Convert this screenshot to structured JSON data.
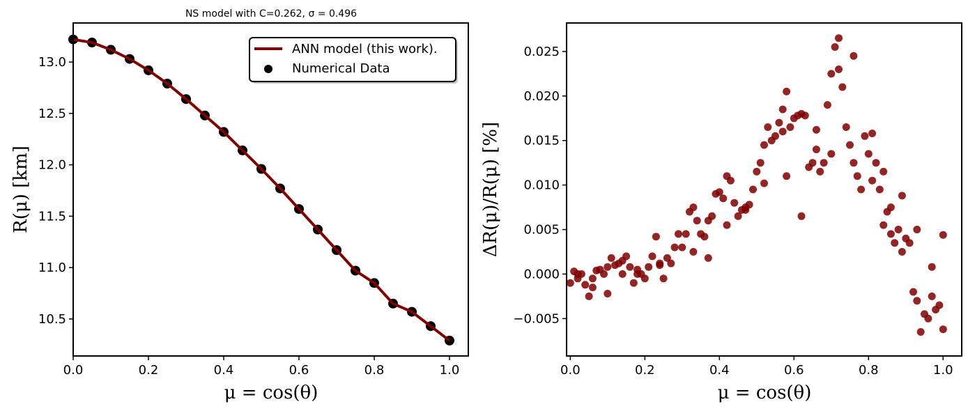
{
  "chart_data": [
    {
      "type": "line",
      "title": "NS model with C=0.262, σ = 0.496",
      "xlabel": "μ = cos(θ)",
      "ylabel": "R(μ) [km]",
      "xlim": [
        0.0,
        1.05
      ],
      "ylim": [
        10.14,
        13.38
      ],
      "xticks": [
        "0.0",
        "0.2",
        "0.4",
        "0.6",
        "0.8",
        "1.0"
      ],
      "yticks": [
        "10.5",
        "11.0",
        "11.5",
        "12.0",
        "12.5",
        "13.0"
      ],
      "legend_position": "top-right",
      "series": [
        {
          "name": "ANN model (this work).",
          "kind": "line",
          "color": "#7f0000",
          "x": [
            0.0,
            0.05,
            0.1,
            0.15,
            0.2,
            0.25,
            0.3,
            0.35,
            0.4,
            0.45,
            0.5,
            0.55,
            0.6,
            0.65,
            0.7,
            0.75,
            0.8,
            0.85,
            0.9,
            0.95,
            1.0
          ],
          "y": [
            13.22,
            13.19,
            13.12,
            13.03,
            12.92,
            12.79,
            12.64,
            12.48,
            12.32,
            12.14,
            11.96,
            11.77,
            11.57,
            11.37,
            11.17,
            10.97,
            10.85,
            10.65,
            10.57,
            10.43,
            10.29
          ]
        },
        {
          "name": "Numerical Data",
          "kind": "scatter",
          "color": "#000000",
          "x": [
            0.0,
            0.05,
            0.1,
            0.15,
            0.2,
            0.25,
            0.3,
            0.35,
            0.4,
            0.45,
            0.5,
            0.55,
            0.6,
            0.65,
            0.7,
            0.75,
            0.8,
            0.85,
            0.9,
            0.95,
            1.0
          ],
          "y": [
            13.22,
            13.19,
            13.12,
            13.03,
            12.92,
            12.79,
            12.64,
            12.48,
            12.32,
            12.14,
            11.96,
            11.77,
            11.57,
            11.37,
            11.17,
            10.97,
            10.85,
            10.65,
            10.57,
            10.43,
            10.29
          ]
        }
      ]
    },
    {
      "type": "scatter",
      "title": "",
      "xlabel": "μ = cos(θ)",
      "ylabel": "ΔR(μ)/R(μ) [%]",
      "xlim": [
        -0.01,
        1.05
      ],
      "ylim": [
        -0.0092,
        0.0282
      ],
      "xticks": [
        "0.0",
        "0.2",
        "0.4",
        "0.6",
        "0.8",
        "1.0"
      ],
      "yticks": [
        "−0.005",
        "0.000",
        "0.005",
        "0.010",
        "0.015",
        "0.020",
        "0.025"
      ],
      "series": [
        {
          "name": "",
          "color": "#7f0000",
          "x": [
            0.0,
            0.01,
            0.02,
            0.03,
            0.04,
            0.05,
            0.06,
            0.07,
            0.08,
            0.09,
            0.1,
            0.11,
            0.12,
            0.13,
            0.14,
            0.15,
            0.16,
            0.17,
            0.18,
            0.19,
            0.2,
            0.21,
            0.22,
            0.23,
            0.24,
            0.25,
            0.26,
            0.27,
            0.28,
            0.29,
            0.3,
            0.31,
            0.32,
            0.33,
            0.34,
            0.35,
            0.36,
            0.37,
            0.38,
            0.39,
            0.4,
            0.41,
            0.42,
            0.43,
            0.44,
            0.45,
            0.46,
            0.47,
            0.48,
            0.49,
            0.5,
            0.51,
            0.52,
            0.53,
            0.54,
            0.55,
            0.56,
            0.57,
            0.58,
            0.59,
            0.6,
            0.61,
            0.62,
            0.63,
            0.64,
            0.65,
            0.66,
            0.67,
            0.68,
            0.69,
            0.7,
            0.71,
            0.72,
            0.73,
            0.74,
            0.75,
            0.76,
            0.77,
            0.78,
            0.79,
            0.8,
            0.81,
            0.82,
            0.83,
            0.84,
            0.85,
            0.86,
            0.87,
            0.88,
            0.89,
            0.9,
            0.91,
            0.92,
            0.93,
            0.94,
            0.95,
            0.96,
            0.97,
            0.98,
            0.99,
            1.0,
            0.02,
            0.06,
            0.1,
            0.14,
            0.18,
            0.24,
            0.33,
            0.37,
            0.42,
            0.47,
            0.52,
            0.57,
            0.58,
            0.62,
            0.66,
            0.7,
            0.72,
            0.76,
            0.81,
            0.84,
            0.86,
            0.89,
            0.93,
            0.97,
            1.0
          ],
          "y": [
            -0.001,
            0.0003,
            -0.0005,
            0.0,
            -0.0012,
            -0.0025,
            -0.0005,
            0.0004,
            0.0005,
            0.0,
            -0.0022,
            0.0018,
            0.001,
            0.0012,
            0.0,
            0.002,
            0.0008,
            -0.001,
            0.0005,
            0.0,
            -0.0005,
            0.0008,
            0.002,
            0.0042,
            0.001,
            -0.0005,
            0.0018,
            0.0012,
            0.003,
            0.0045,
            0.003,
            0.0045,
            0.007,
            0.0075,
            0.006,
            0.0045,
            0.0042,
            0.006,
            0.0065,
            0.009,
            0.0092,
            0.0085,
            0.011,
            0.0105,
            0.008,
            0.0065,
            0.0072,
            0.0072,
            0.0078,
            0.0095,
            0.0115,
            0.0125,
            0.0145,
            0.0165,
            0.015,
            0.0155,
            0.017,
            0.0185,
            0.011,
            0.0165,
            0.0175,
            0.0178,
            0.018,
            0.0178,
            0.012,
            0.0125,
            0.014,
            0.0115,
            0.0125,
            0.019,
            0.0225,
            0.0255,
            0.0265,
            0.021,
            0.0165,
            0.0145,
            0.0125,
            0.011,
            0.0095,
            0.0155,
            0.0135,
            0.0105,
            0.0125,
            0.0095,
            0.0055,
            0.007,
            0.0045,
            0.0035,
            0.005,
            0.0025,
            0.004,
            0.0035,
            -0.002,
            -0.003,
            -0.0065,
            -0.0045,
            -0.005,
            -0.0025,
            -0.004,
            -0.0035,
            0.0044,
            0.0,
            -0.0015,
            0.0008,
            0.0015,
            0.0,
            0.0012,
            0.0025,
            0.0018,
            0.0055,
            0.0075,
            0.0102,
            0.016,
            0.0205,
            0.0065,
            0.0162,
            0.0135,
            0.023,
            0.0245,
            0.0158,
            0.0115,
            0.0075,
            0.0088,
            0.005,
            0.0008,
            -0.0062
          ]
        }
      ]
    }
  ]
}
